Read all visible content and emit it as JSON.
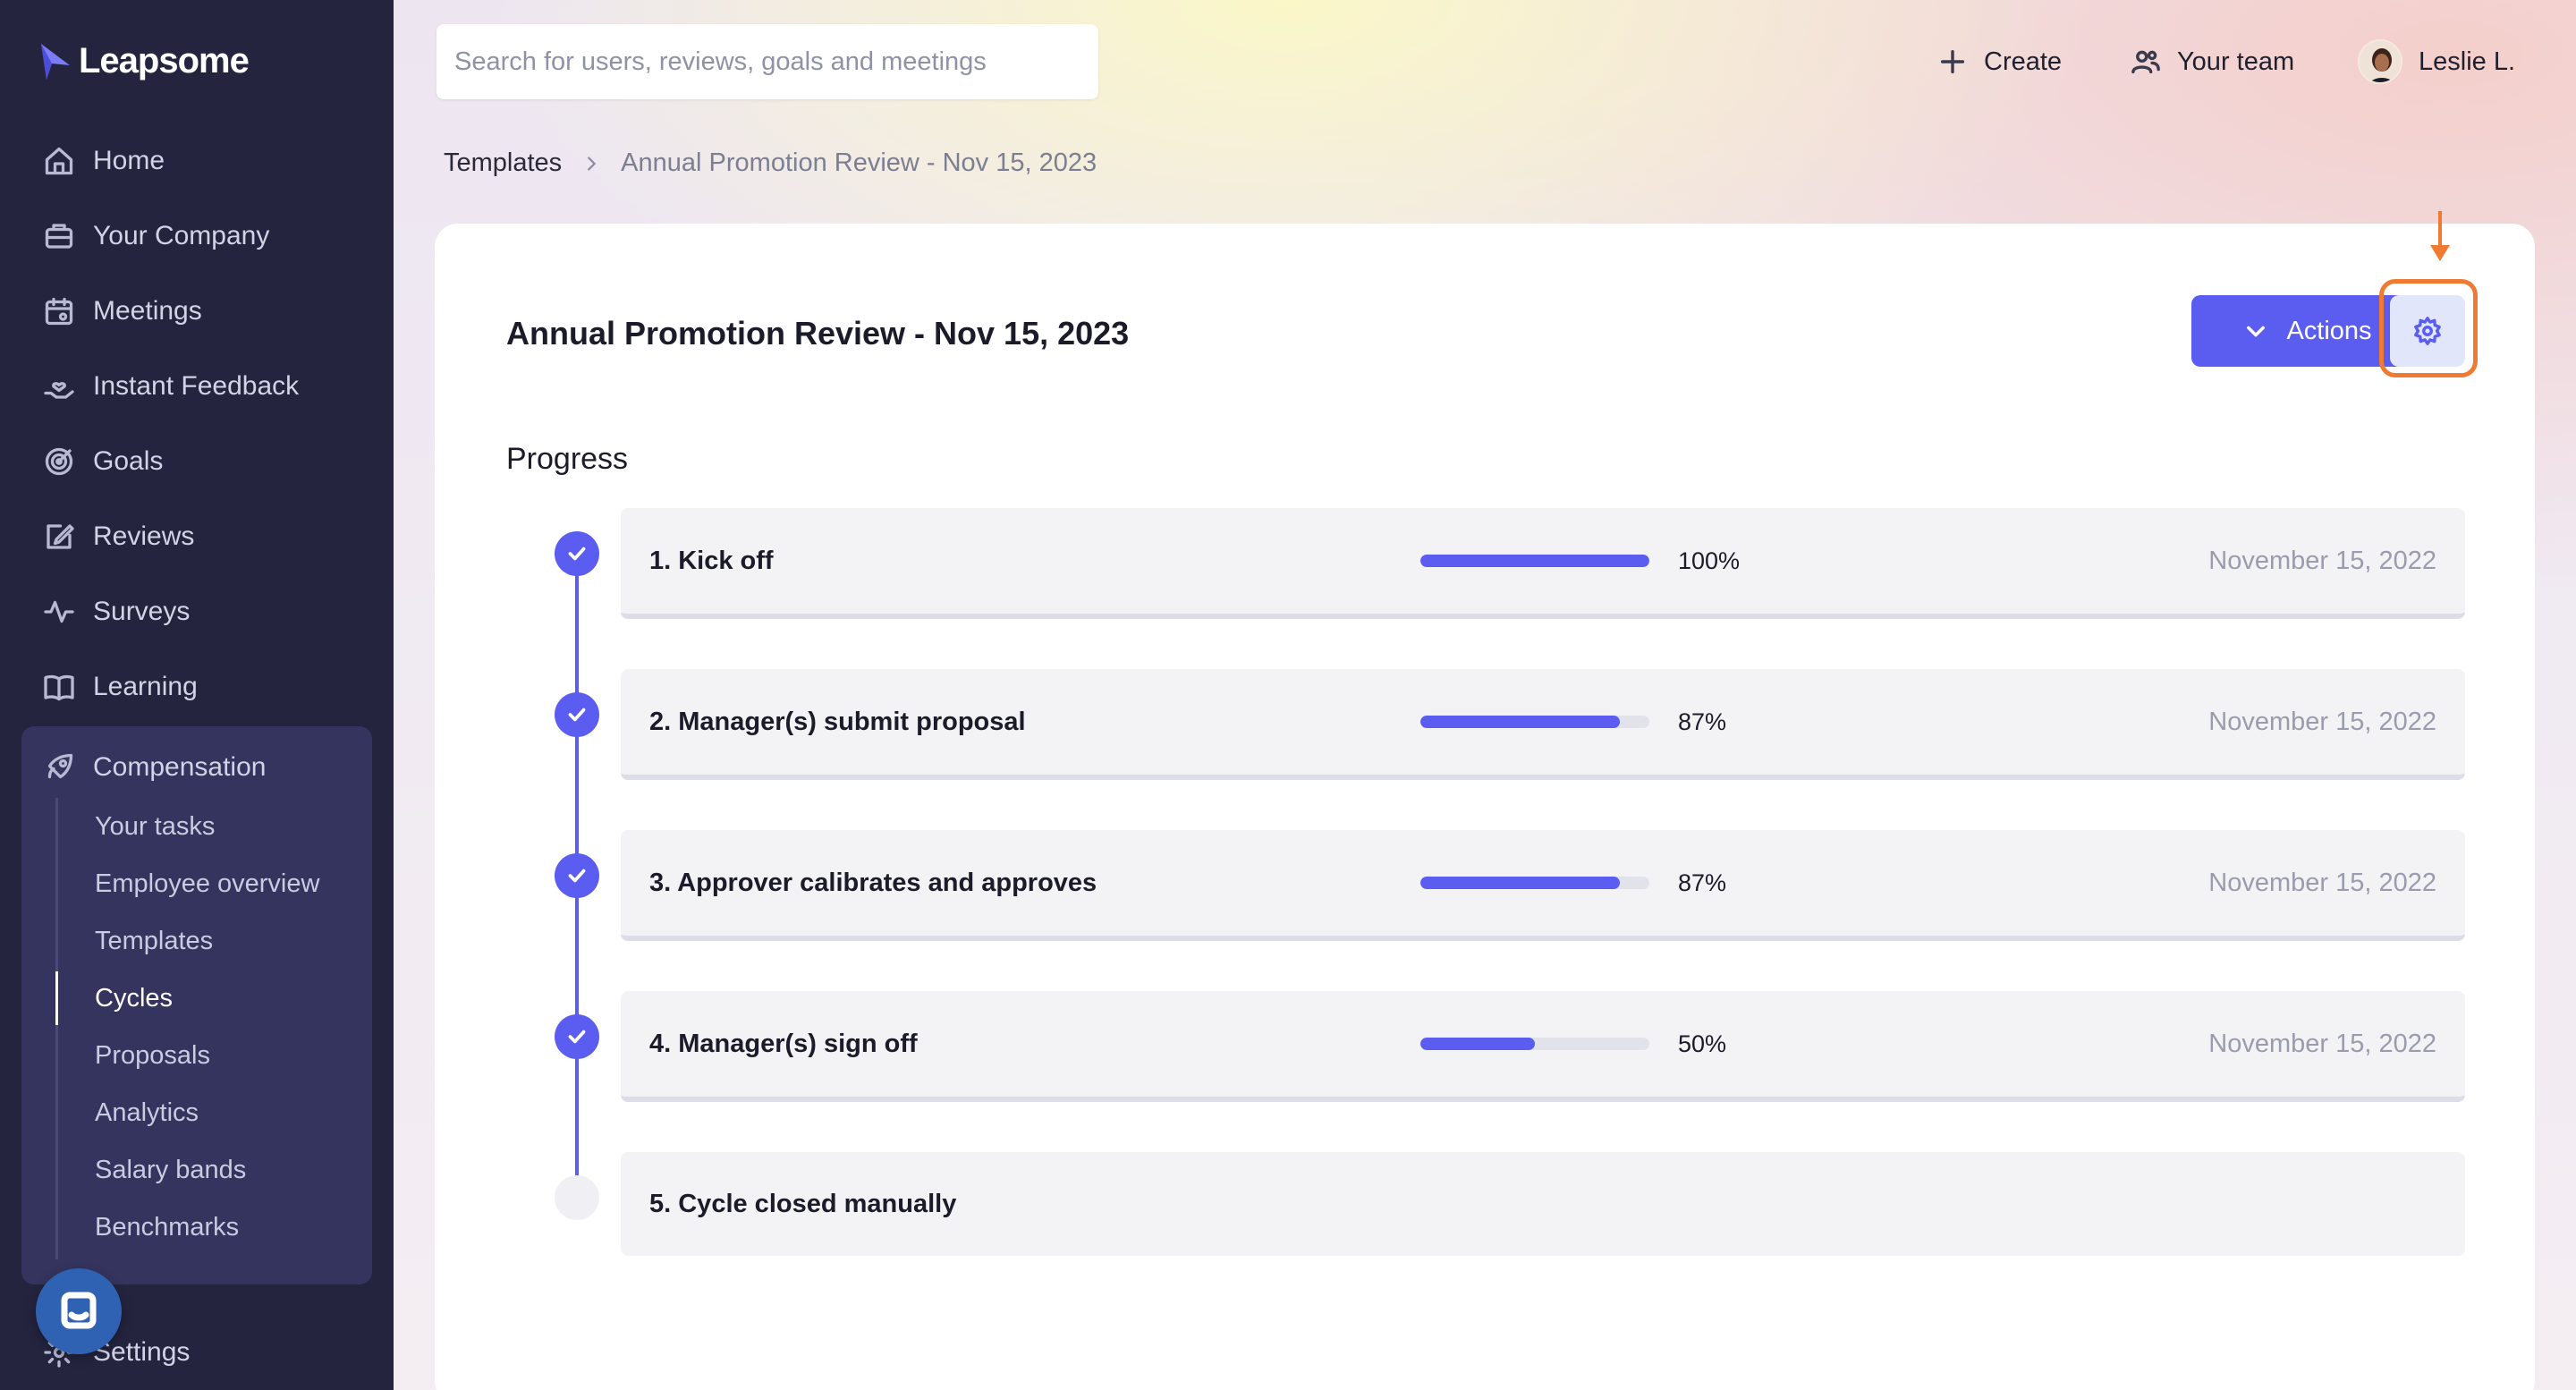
{
  "app": {
    "name": "Leapsome"
  },
  "sidebar": {
    "items": [
      {
        "label": "Home",
        "icon": "home-icon"
      },
      {
        "label": "Your Company",
        "icon": "briefcase-icon"
      },
      {
        "label": "Meetings",
        "icon": "calendar-icon"
      },
      {
        "label": "Instant Feedback",
        "icon": "hand-heart-icon"
      },
      {
        "label": "Goals",
        "icon": "target-icon"
      },
      {
        "label": "Reviews",
        "icon": "edit-icon"
      },
      {
        "label": "Surveys",
        "icon": "pulse-icon"
      },
      {
        "label": "Learning",
        "icon": "book-icon"
      }
    ],
    "compensation": {
      "label": "Compensation",
      "icon": "rocket-icon",
      "sub_items": [
        {
          "label": "Your tasks",
          "active": false
        },
        {
          "label": "Employee overview",
          "active": false
        },
        {
          "label": "Templates",
          "active": false
        },
        {
          "label": "Cycles",
          "active": true
        },
        {
          "label": "Proposals",
          "active": false
        },
        {
          "label": "Analytics",
          "active": false
        },
        {
          "label": "Salary bands",
          "active": false
        },
        {
          "label": "Benchmarks",
          "active": false
        }
      ]
    },
    "settings_label": "Settings"
  },
  "header": {
    "search_placeholder": "Search for users, reviews, goals and meetings",
    "create_label": "Create",
    "team_label": "Your team",
    "user_label": "Leslie L."
  },
  "breadcrumb": {
    "parent": "Templates",
    "current": "Annual Promotion Review - Nov 15, 2023"
  },
  "card": {
    "title": "Annual Promotion Review - Nov 15, 2023",
    "actions_label": "Actions",
    "progress_title": "Progress",
    "steps": [
      {
        "name": "1. Kick off",
        "progress": 1.0,
        "pct_label": "100%",
        "date": "November 15, 2022",
        "done": true
      },
      {
        "name": "2. Manager(s) submit proposal",
        "progress": 0.87,
        "pct_label": "87%",
        "date": "November 15, 2022",
        "done": true
      },
      {
        "name": "3. Approver calibrates and approves",
        "progress": 0.87,
        "pct_label": "87%",
        "date": "November 15, 2022",
        "done": true
      },
      {
        "name": "4. Manager(s) sign off",
        "progress": 0.5,
        "pct_label": "50%",
        "date": "November 15, 2022",
        "done": true
      },
      {
        "name": "5. Cycle closed manually",
        "progress": null,
        "pct_label": "",
        "date": "",
        "done": false
      }
    ]
  },
  "colors": {
    "accent": "#5b5cf0",
    "sidebar_bg": "#24243f",
    "highlight": "#f07a32"
  }
}
